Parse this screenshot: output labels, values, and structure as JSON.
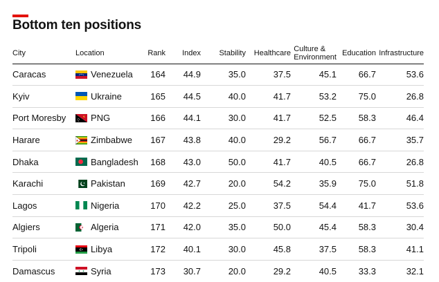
{
  "title": "Bottom ten positions",
  "colors": {
    "accent": "#e3120b",
    "text": "#121212",
    "rule": "#d7d7d7"
  },
  "columns": [
    "City",
    "Location",
    "Rank",
    "Index",
    "Stability",
    "Healthcare",
    "Culture & Environment",
    "Education",
    "Infrastructure"
  ],
  "columns_lines": {
    "culture_line1": "Culture &",
    "culture_line2": "Environment"
  },
  "rows": [
    {
      "city": "Caracas",
      "location": "Venezuela",
      "flag_icon": "venezuela-flag-icon",
      "rank": "164",
      "index": "44.9",
      "stability": "35.0",
      "healthcare": "37.5",
      "culture": "45.1",
      "education": "66.7",
      "infrastructure": "53.6"
    },
    {
      "city": "Kyiv",
      "location": "Ukraine",
      "flag_icon": "ukraine-flag-icon",
      "rank": "165",
      "index": "44.5",
      "stability": "40.0",
      "healthcare": "41.7",
      "culture": "53.2",
      "education": "75.0",
      "infrastructure": "26.8"
    },
    {
      "city": "Port Moresby",
      "location": "PNG",
      "flag_icon": "png-flag-icon",
      "rank": "166",
      "index": "44.1",
      "stability": "30.0",
      "healthcare": "41.7",
      "culture": "52.5",
      "education": "58.3",
      "infrastructure": "46.4"
    },
    {
      "city": "Harare",
      "location": "Zimbabwe",
      "flag_icon": "zimbabwe-flag-icon",
      "rank": "167",
      "index": "43.8",
      "stability": "40.0",
      "healthcare": "29.2",
      "culture": "56.7",
      "education": "66.7",
      "infrastructure": "35.7"
    },
    {
      "city": "Dhaka",
      "location": "Bangladesh",
      "flag_icon": "bangladesh-flag-icon",
      "rank": "168",
      "index": "43.0",
      "stability": "50.0",
      "healthcare": "41.7",
      "culture": "40.5",
      "education": "66.7",
      "infrastructure": "26.8"
    },
    {
      "city": "Karachi",
      "location": "Pakistan",
      "flag_icon": "pakistan-flag-icon",
      "rank": "169",
      "index": "42.7",
      "stability": "20.0",
      "healthcare": "54.2",
      "culture": "35.9",
      "education": "75.0",
      "infrastructure": "51.8"
    },
    {
      "city": "Lagos",
      "location": "Nigeria",
      "flag_icon": "nigeria-flag-icon",
      "rank": "170",
      "index": "42.2",
      "stability": "25.0",
      "healthcare": "37.5",
      "culture": "54.4",
      "education": "41.7",
      "infrastructure": "53.6"
    },
    {
      "city": "Algiers",
      "location": "Algeria",
      "flag_icon": "algeria-flag-icon",
      "rank": "171",
      "index": "42.0",
      "stability": "35.0",
      "healthcare": "50.0",
      "culture": "45.4",
      "education": "58.3",
      "infrastructure": "30.4"
    },
    {
      "city": "Tripoli",
      "location": "Libya",
      "flag_icon": "libya-flag-icon",
      "rank": "172",
      "index": "40.1",
      "stability": "30.0",
      "healthcare": "45.8",
      "culture": "37.5",
      "education": "58.3",
      "infrastructure": "41.1"
    },
    {
      "city": "Damascus",
      "location": "Syria",
      "flag_icon": "syria-flag-icon",
      "rank": "173",
      "index": "30.7",
      "stability": "20.0",
      "healthcare": "29.2",
      "culture": "40.5",
      "education": "33.3",
      "infrastructure": "32.1"
    }
  ]
}
